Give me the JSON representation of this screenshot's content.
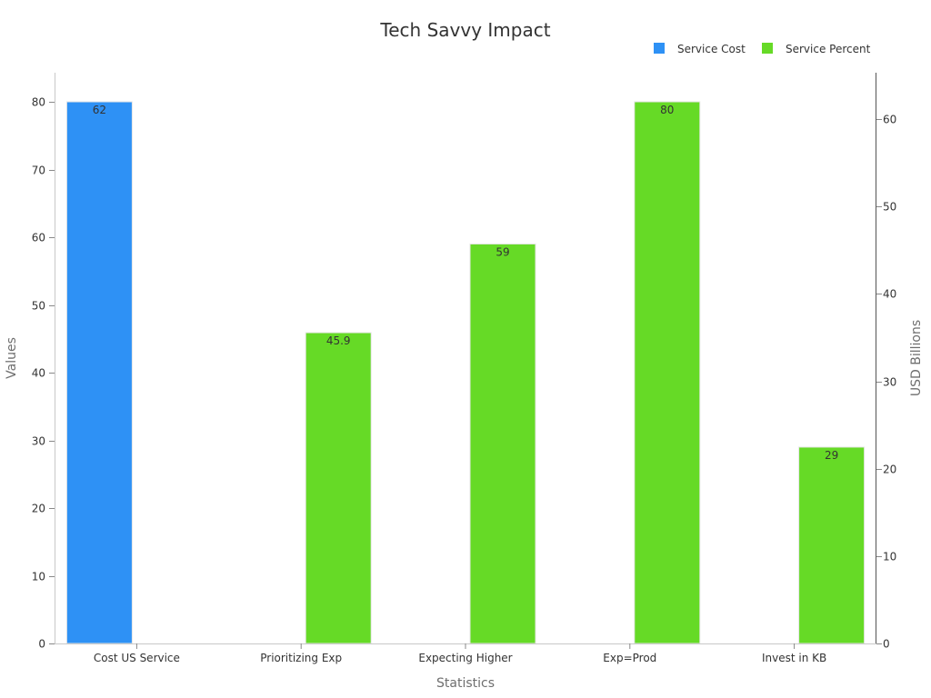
{
  "chart_data": {
    "type": "bar",
    "title": "Tech Savvy Impact",
    "xlabel": "Statistics",
    "ylabel": "Values",
    "y2label": "USD Billions",
    "categories": [
      "Cost US Service",
      "Prioritizing Exp",
      "Expecting Higher",
      "Exp=Prod",
      "Invest in KB"
    ],
    "series": [
      {
        "name": "Service Cost",
        "color": "#2e91f5",
        "axis": "right",
        "values": [
          62,
          null,
          null,
          null,
          null
        ],
        "labels": [
          "62",
          null,
          null,
          null,
          null
        ]
      },
      {
        "name": "Service Percent",
        "color": "#66da26",
        "axis": "left",
        "values": [
          null,
          45.9,
          59,
          80,
          29
        ],
        "labels": [
          null,
          "45.9",
          "59",
          "80",
          "29"
        ]
      }
    ],
    "ylim": [
      0,
      80
    ],
    "yticks": [
      0,
      10,
      20,
      30,
      40,
      50,
      60,
      70,
      80
    ],
    "y2lim": [
      0,
      62
    ],
    "y2ticks": [
      0,
      10,
      20,
      30,
      40,
      50,
      60
    ],
    "legend_position": "top-right",
    "grid": false
  }
}
